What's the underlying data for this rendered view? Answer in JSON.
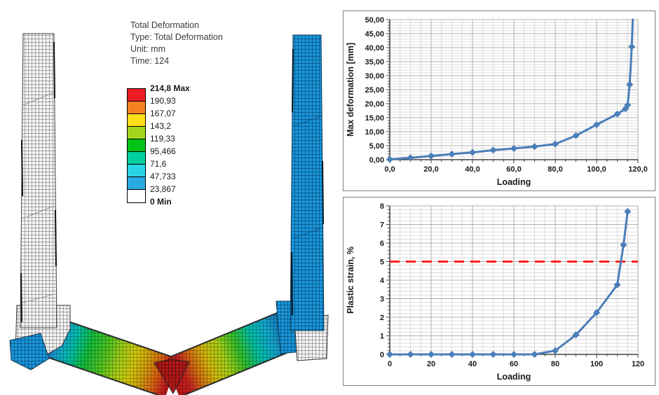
{
  "figure": {
    "annotation": {
      "lines": [
        "Total Deformation",
        "Type: Total Deformation",
        "Unit: mm",
        "Time: 124"
      ]
    },
    "legend": {
      "bands": [
        "#ed1c24",
        "#f58220",
        "#ffde17",
        "#a2d61e",
        "#00c317",
        "#00cf9e",
        "#2ad4e4",
        "#29abe2",
        "#ffffff"
      ],
      "labels": [
        {
          "text": "214,8 Max",
          "bold": true
        },
        {
          "text": "190,93",
          "bold": false
        },
        {
          "text": "167,07",
          "bold": false
        },
        {
          "text": "143,2",
          "bold": false
        },
        {
          "text": "119,33",
          "bold": false
        },
        {
          "text": "95,466",
          "bold": false
        },
        {
          "text": "71,6",
          "bold": false
        },
        {
          "text": "47,733",
          "bold": false
        },
        {
          "text": "23,867",
          "bold": false
        },
        {
          "text": "0 Min",
          "bold": true
        }
      ]
    }
  },
  "chart_data": [
    {
      "type": "line",
      "title": "",
      "xlabel": "Loading",
      "ylabel": "Max deformation [mm]",
      "xlim": [
        0,
        120
      ],
      "ylim": [
        0,
        50
      ],
      "x_major": 20,
      "x_minor": 5,
      "y_major": 5,
      "y_minor": 1,
      "x_tick_labels": [
        "0,0",
        "20,0",
        "40,0",
        "60,0",
        "80,0",
        "100,0",
        "120,0"
      ],
      "y_tick_labels": [
        "0,00",
        "5,00",
        "10,00",
        "15,00",
        "20,00",
        "25,00",
        "30,00",
        "35,00",
        "40,00",
        "45,00",
        "50,00"
      ],
      "grid": true,
      "legend_position": "none",
      "series": [
        {
          "name": "Max deformation",
          "color": "#4a7ebb",
          "marker": "diamond",
          "points": [
            [
              0,
              0.1
            ],
            [
              10,
              0.7
            ],
            [
              20,
              1.3
            ],
            [
              30,
              2.0
            ],
            [
              40,
              2.6
            ],
            [
              50,
              3.4
            ],
            [
              60,
              4.0
            ],
            [
              70,
              4.7
            ],
            [
              80,
              5.6
            ],
            [
              90,
              8.6
            ],
            [
              100,
              12.5
            ],
            [
              110,
              16.3
            ],
            [
              114,
              18.2
            ],
            [
              115,
              19.5
            ],
            [
              116,
              26.8
            ],
            [
              117,
              40.3
            ],
            [
              117.5,
              50,
              0
            ]
          ]
        }
      ]
    },
    {
      "type": "line",
      "title": "",
      "xlabel": "Loading",
      "ylabel": "Plastic strain, %",
      "xlim": [
        0,
        120
      ],
      "ylim": [
        0,
        8
      ],
      "x_major": 20,
      "x_minor": 5,
      "y_major": 1,
      "y_minor": 0.2,
      "x_tick_labels": [
        "0",
        "20",
        "40",
        "60",
        "80",
        "100",
        "120"
      ],
      "y_tick_labels": [
        "0",
        "1",
        "2",
        "3",
        "4",
        "5",
        "6",
        "7",
        "8"
      ],
      "grid": true,
      "legend_position": "none",
      "reference_line": {
        "y": 5,
        "color": "#ff1f1f",
        "style": "dashed"
      },
      "series": [
        {
          "name": "Plastic strain",
          "color": "#4a7ebb",
          "marker": "diamond",
          "points": [
            [
              0,
              0
            ],
            [
              10,
              0
            ],
            [
              20,
              0
            ],
            [
              30,
              0
            ],
            [
              40,
              0
            ],
            [
              50,
              0
            ],
            [
              60,
              0
            ],
            [
              70,
              0
            ],
            [
              80,
              0.2
            ],
            [
              90,
              1.05
            ],
            [
              100,
              2.25
            ],
            [
              110,
              3.75
            ],
            [
              113,
              5.9
            ],
            [
              115,
              7.7
            ]
          ]
        }
      ]
    }
  ]
}
